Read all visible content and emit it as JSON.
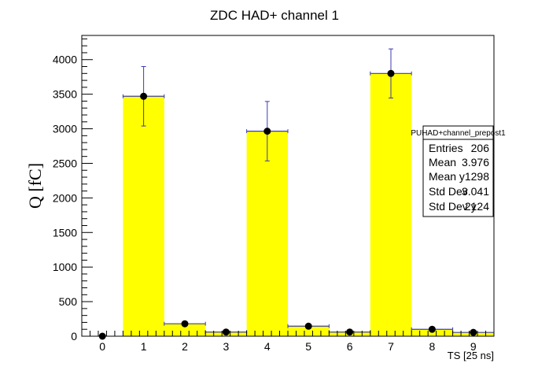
{
  "chart_data": {
    "type": "bar",
    "title": "ZDC HAD+ channel 1",
    "xlabel": "TS [25 ns]",
    "ylabel": "Q [fC]",
    "x_ticks": [
      "0",
      "1",
      "2",
      "3",
      "4",
      "5",
      "6",
      "7",
      "8",
      "9"
    ],
    "y_ticks": [
      "0",
      "500",
      "1000",
      "1500",
      "2000",
      "2500",
      "3000",
      "3500",
      "4000"
    ],
    "xlim": [
      -0.5,
      9.5
    ],
    "ylim": [
      0,
      4350
    ],
    "grid": false,
    "legend": "none",
    "bar_color": "#ffff00",
    "marker_color": "#000000",
    "error_color": "#3b3bb0",
    "bins": [
      {
        "ts": 0,
        "value": 0,
        "error": 0
      },
      {
        "ts": 1,
        "value": 3470,
        "error": 430
      },
      {
        "ts": 2,
        "value": 180,
        "error": 30
      },
      {
        "ts": 3,
        "value": 60,
        "error": 20
      },
      {
        "ts": 4,
        "value": 2965,
        "error": 430
      },
      {
        "ts": 5,
        "value": 145,
        "error": 30
      },
      {
        "ts": 6,
        "value": 60,
        "error": 20
      },
      {
        "ts": 7,
        "value": 3800,
        "error": 355
      },
      {
        "ts": 8,
        "value": 100,
        "error": 25
      },
      {
        "ts": 9,
        "value": 55,
        "error": 20
      }
    ]
  },
  "stats_box": {
    "title": "PUHAD+channel_prepost1",
    "rows": [
      {
        "label": "Entries",
        "value": "206"
      },
      {
        "label": "Mean",
        "value": "3.976"
      },
      {
        "label": "Mean y",
        "value": "1298"
      },
      {
        "label": "Std Dev",
        "value": "3.041"
      },
      {
        "label": "Std Dev y",
        "value": "2124"
      }
    ]
  }
}
